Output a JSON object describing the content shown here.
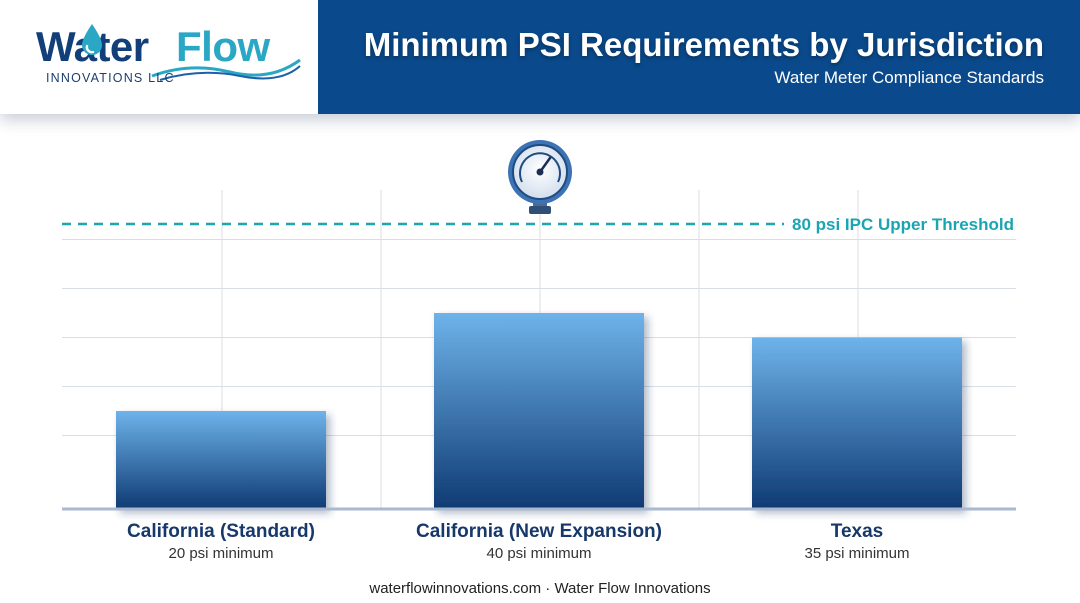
{
  "header": {
    "logo_word_1": "Water",
    "logo_word_2": "Flow",
    "logo_subtitle": "INNOVATIONS LLC",
    "title": "Minimum PSI Requirements by Jurisdiction",
    "subtitle": "Water Meter Compliance Standards"
  },
  "colors": {
    "header_bg": "#0a4a8c",
    "bar_top": "#6eb3ea",
    "bar_bottom": "#0f3a73",
    "threshold": "#1ba5b3",
    "label": "#17386a"
  },
  "icons": [
    "water-drop-icon",
    "pressure-gauge-icon"
  ],
  "chart_data": {
    "type": "bar",
    "categories": [
      "California (Standard)",
      "California (New Expansion)",
      "Texas"
    ],
    "values": [
      20,
      40,
      35
    ],
    "value_labels": [
      "20 psi minimum",
      "40 psi minimum",
      "35 psi minimum"
    ],
    "ylim": [
      0,
      90
    ],
    "grid": true,
    "threshold": {
      "value": 80,
      "label": "80 psi IPC Upper Threshold"
    }
  },
  "footer": "waterflowinnovations.com · Water Flow Innovations"
}
